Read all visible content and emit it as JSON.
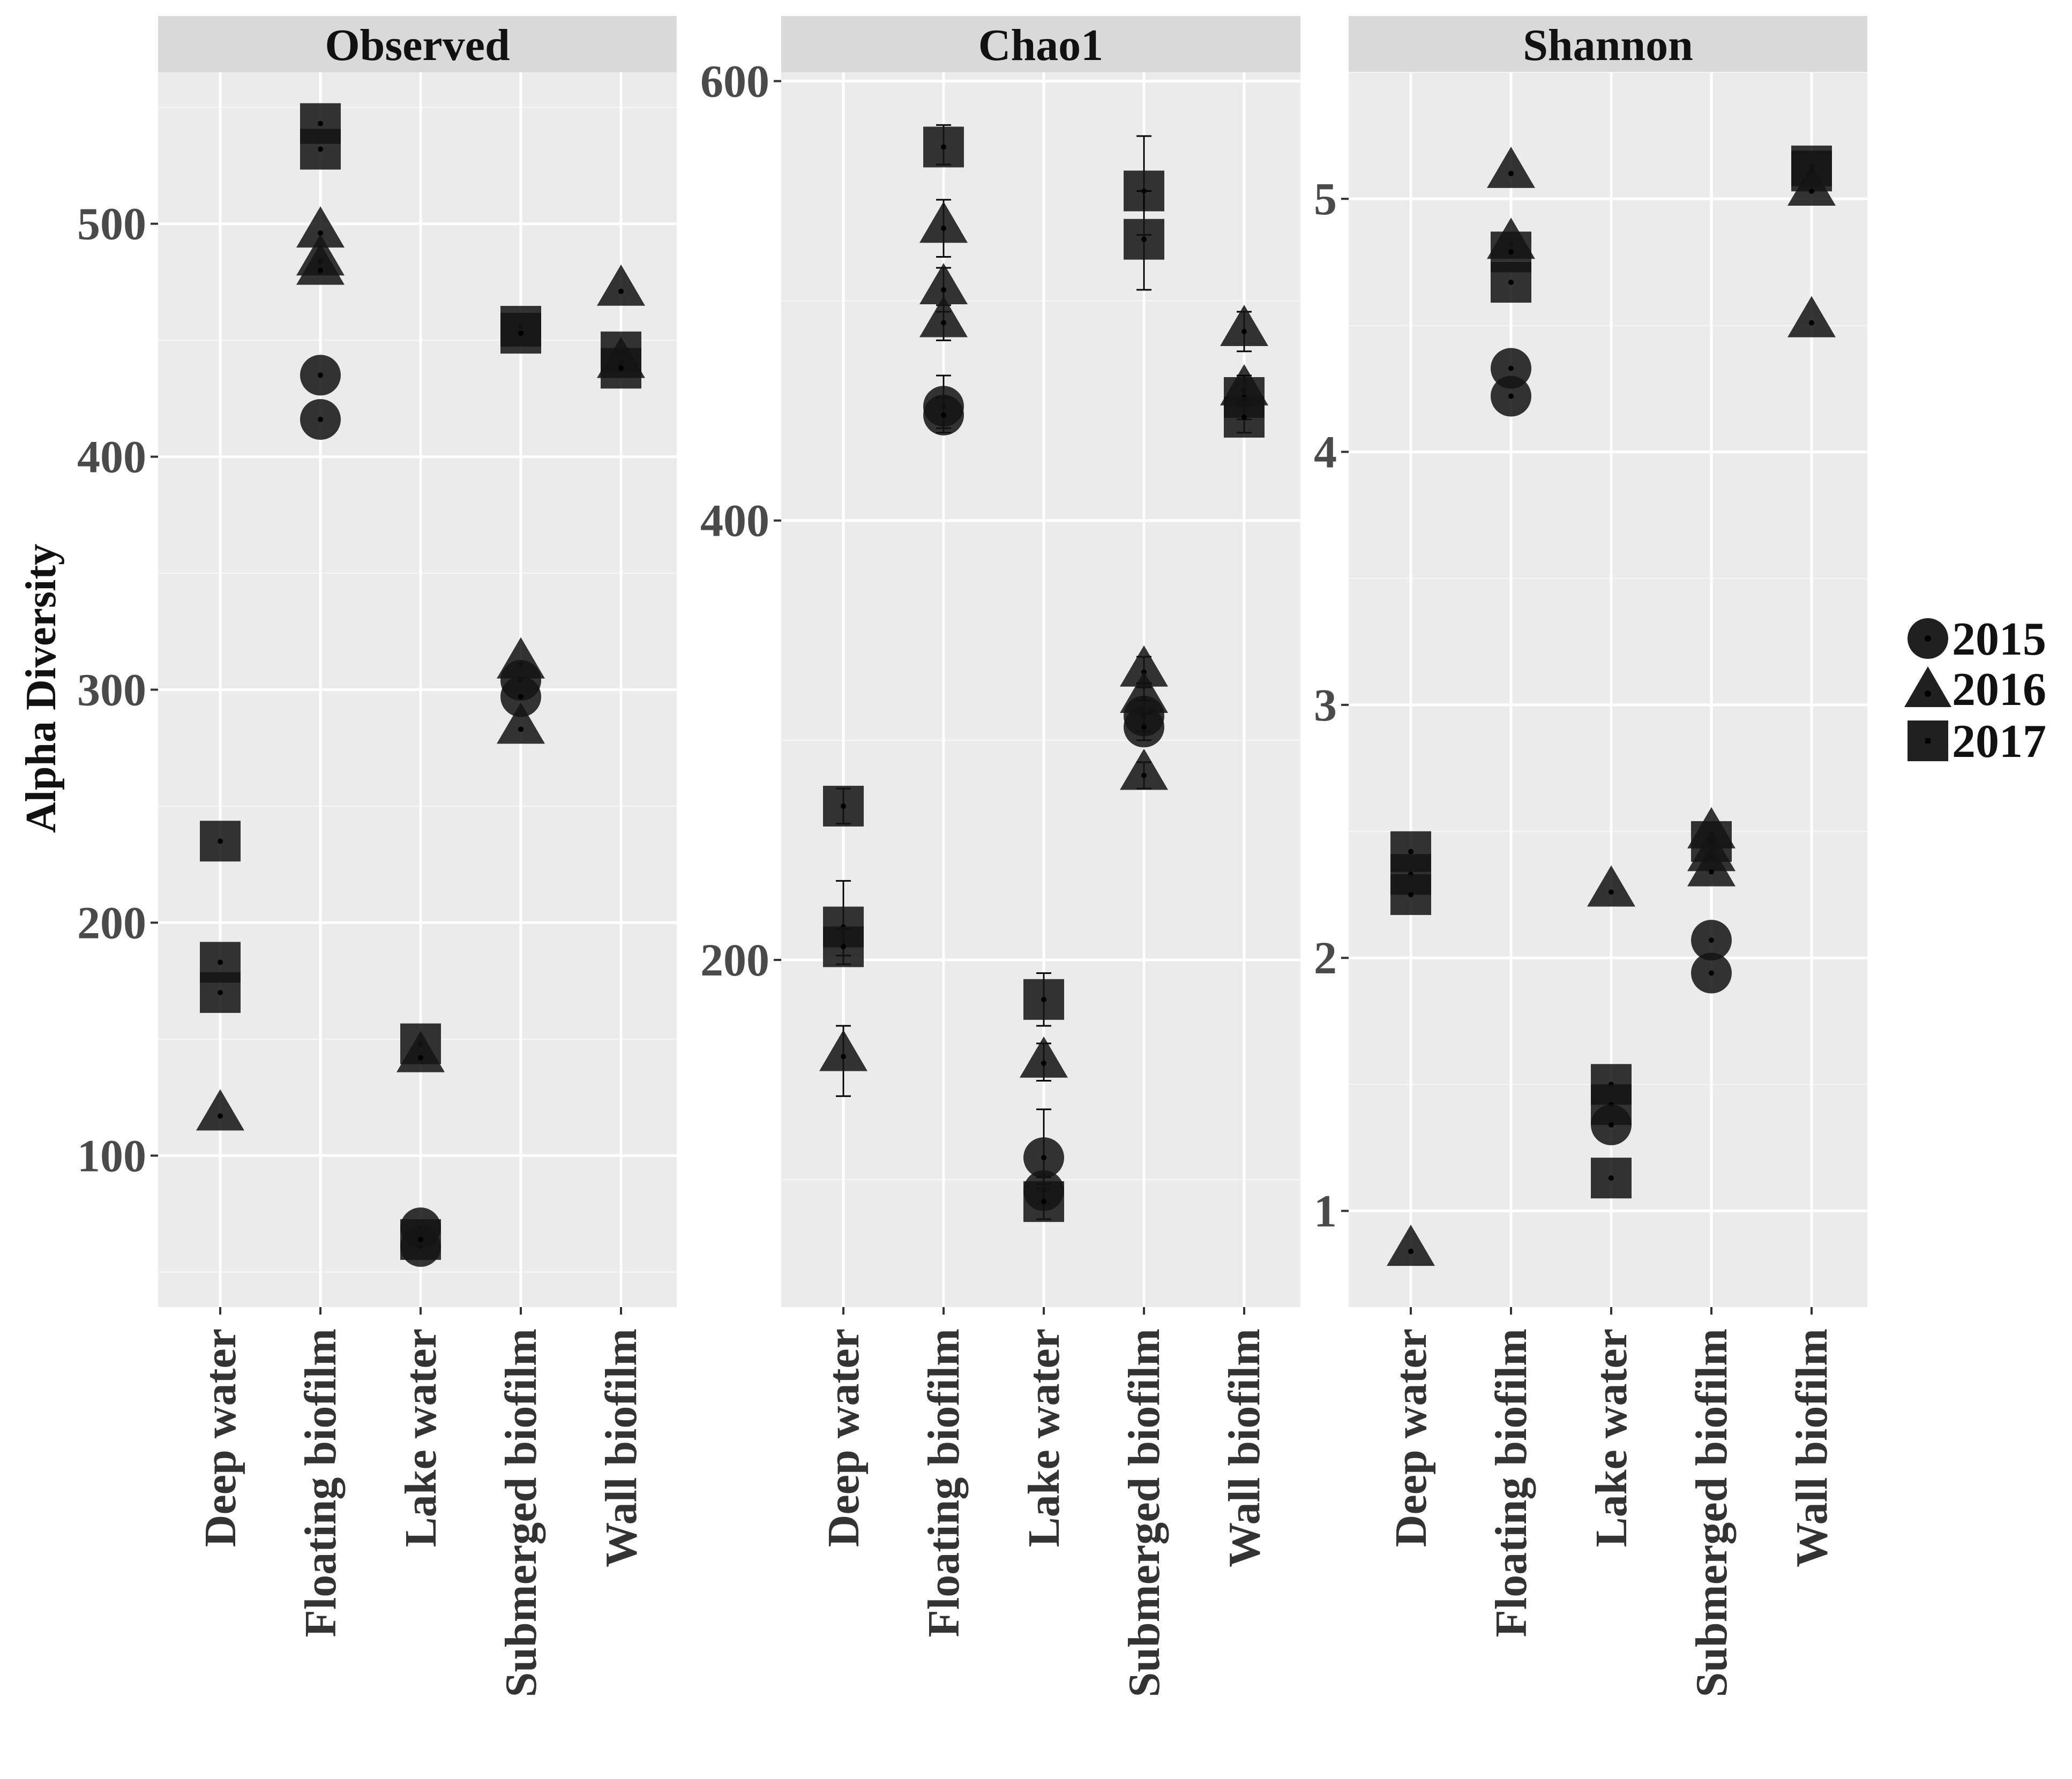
{
  "chart_data": {
    "type": "scatter",
    "ylabel": "Alpha Diversity",
    "categories": [
      "Deep water",
      "Floating biofilm",
      "Lake water",
      "Submerged biofilm",
      "Wall biofilm"
    ],
    "legend": {
      "position": "right",
      "entries": [
        {
          "label": "2015",
          "shape": "circle"
        },
        {
          "label": "2016",
          "shape": "triangle"
        },
        {
          "label": "2017",
          "shape": "square"
        }
      ]
    },
    "panels": [
      {
        "title": "Observed",
        "ylim": [
          35,
          565
        ],
        "yticks": [
          100,
          200,
          300,
          400,
          500
        ],
        "ytick_labels": [
          "100",
          "200",
          "300",
          "400",
          "500"
        ],
        "points": [
          {
            "category": "Deep water",
            "year": "2017",
            "value": 235
          },
          {
            "category": "Deep water",
            "year": "2017",
            "value": 183
          },
          {
            "category": "Deep water",
            "year": "2017",
            "value": 170
          },
          {
            "category": "Deep water",
            "year": "2016",
            "value": 117
          },
          {
            "category": "Floating biofilm",
            "year": "2017",
            "value": 543
          },
          {
            "category": "Floating biofilm",
            "year": "2017",
            "value": 532
          },
          {
            "category": "Floating biofilm",
            "year": "2016",
            "value": 496
          },
          {
            "category": "Floating biofilm",
            "year": "2016",
            "value": 484
          },
          {
            "category": "Floating biofilm",
            "year": "2016",
            "value": 480
          },
          {
            "category": "Floating biofilm",
            "year": "2015",
            "value": 435
          },
          {
            "category": "Floating biofilm",
            "year": "2015",
            "value": 416
          },
          {
            "category": "Lake water",
            "year": "2017",
            "value": 148
          },
          {
            "category": "Lake water",
            "year": "2016",
            "value": 142
          },
          {
            "category": "Lake water",
            "year": "2015",
            "value": 69
          },
          {
            "category": "Lake water",
            "year": "2015",
            "value": 61
          },
          {
            "category": "Lake water",
            "year": "2017",
            "value": 64
          },
          {
            "category": "Submerged biofilm",
            "year": "2017",
            "value": 456
          },
          {
            "category": "Submerged biofilm",
            "year": "2017",
            "value": 453
          },
          {
            "category": "Submerged biofilm",
            "year": "2016",
            "value": 311
          },
          {
            "category": "Submerged biofilm",
            "year": "2015",
            "value": 304
          },
          {
            "category": "Submerged biofilm",
            "year": "2015",
            "value": 297
          },
          {
            "category": "Submerged biofilm",
            "year": "2016",
            "value": 283
          },
          {
            "category": "Wall biofilm",
            "year": "2016",
            "value": 471
          },
          {
            "category": "Wall biofilm",
            "year": "2017",
            "value": 445
          },
          {
            "category": "Wall biofilm",
            "year": "2016",
            "value": 440
          },
          {
            "category": "Wall biofilm",
            "year": "2017",
            "value": 438
          }
        ]
      },
      {
        "title": "Chao1",
        "ylim": [
          42,
          604
        ],
        "yticks": [
          200,
          400,
          600
        ],
        "ytick_labels": [
          "200",
          "400",
          "600"
        ],
        "points": [
          {
            "category": "Deep water",
            "year": "2017",
            "value": 270,
            "err": [
              262,
              278
            ]
          },
          {
            "category": "Deep water",
            "year": "2017",
            "value": 215,
            "err": [
              202,
              236
            ]
          },
          {
            "category": "Deep water",
            "year": "2017",
            "value": 206,
            "err": [
              198,
              214
            ]
          },
          {
            "category": "Deep water",
            "year": "2016",
            "value": 156,
            "err": [
              138,
              170
            ]
          },
          {
            "category": "Floating biofilm",
            "year": "2017",
            "value": 570,
            "err": [
              562,
              580
            ]
          },
          {
            "category": "Floating biofilm",
            "year": "2016",
            "value": 533,
            "err": [
              520,
              546
            ]
          },
          {
            "category": "Floating biofilm",
            "year": "2016",
            "value": 505,
            "err": [
              495,
              515
            ]
          },
          {
            "category": "Floating biofilm",
            "year": "2016",
            "value": 490,
            "err": [
              482,
              498
            ]
          },
          {
            "category": "Floating biofilm",
            "year": "2015",
            "value": 452,
            "err": [
              442,
              466
            ]
          },
          {
            "category": "Floating biofilm",
            "year": "2015",
            "value": 448,
            "err": [
              440,
              456
            ]
          },
          {
            "category": "Lake water",
            "year": "2017",
            "value": 182,
            "err": [
              170,
              194
            ]
          },
          {
            "category": "Lake water",
            "year": "2016",
            "value": 153,
            "err": [
              145,
              162
            ]
          },
          {
            "category": "Lake water",
            "year": "2015",
            "value": 110,
            "err": [
              96,
              132
            ]
          },
          {
            "category": "Lake water",
            "year": "2015",
            "value": 95,
            "err": [
              89,
              101
            ]
          },
          {
            "category": "Lake water",
            "year": "2017",
            "value": 90,
            "err": [
              82,
              98
            ]
          },
          {
            "category": "Submerged biofilm",
            "year": "2017",
            "value": 550,
            "err": [
              530,
              575
            ]
          },
          {
            "category": "Submerged biofilm",
            "year": "2017",
            "value": 528,
            "err": [
              505,
              550
            ]
          },
          {
            "category": "Submerged biofilm",
            "year": "2016",
            "value": 331,
            "err": [
              324,
              338
            ]
          },
          {
            "category": "Submerged biofilm",
            "year": "2016",
            "value": 319,
            "err": [
              312,
              326
            ]
          },
          {
            "category": "Submerged biofilm",
            "year": "2015",
            "value": 311,
            "err": [
              304,
              318
            ]
          },
          {
            "category": "Submerged biofilm",
            "year": "2015",
            "value": 306,
            "err": [
              300,
              312
            ]
          },
          {
            "category": "Submerged biofilm",
            "year": "2016",
            "value": 284,
            "err": [
              278,
              290
            ]
          },
          {
            "category": "Wall biofilm",
            "year": "2016",
            "value": 486,
            "err": [
              477,
              495
            ]
          },
          {
            "category": "Wall biofilm",
            "year": "2016",
            "value": 459,
            "err": [
              452,
              466
            ]
          },
          {
            "category": "Wall biofilm",
            "year": "2017",
            "value": 456,
            "err": [
              446,
              466
            ]
          },
          {
            "category": "Wall biofilm",
            "year": "2017",
            "value": 447,
            "err": [
              440,
              455
            ]
          }
        ]
      },
      {
        "title": "Shannon",
        "ylim": [
          0.62,
          5.5
        ],
        "yticks": [
          1,
          2,
          3,
          4,
          5
        ],
        "ytick_labels": [
          "1",
          "2",
          "3",
          "4",
          "5"
        ],
        "points": [
          {
            "category": "Deep water",
            "year": "2017",
            "value": 2.42
          },
          {
            "category": "Deep water",
            "year": "2017",
            "value": 2.33
          },
          {
            "category": "Deep water",
            "year": "2017",
            "value": 2.25
          },
          {
            "category": "Deep water",
            "year": "2016",
            "value": 0.84
          },
          {
            "category": "Floating biofilm",
            "year": "2016",
            "value": 5.1
          },
          {
            "category": "Floating biofilm",
            "year": "2016",
            "value": 4.82
          },
          {
            "category": "Floating biofilm",
            "year": "2017",
            "value": 4.79
          },
          {
            "category": "Floating biofilm",
            "year": "2017",
            "value": 4.67
          },
          {
            "category": "Floating biofilm",
            "year": "2015",
            "value": 4.33
          },
          {
            "category": "Floating biofilm",
            "year": "2015",
            "value": 4.22
          },
          {
            "category": "Lake water",
            "year": "2016",
            "value": 2.26
          },
          {
            "category": "Lake water",
            "year": "2017",
            "value": 1.5
          },
          {
            "category": "Lake water",
            "year": "2017",
            "value": 1.42
          },
          {
            "category": "Lake water",
            "year": "2015",
            "value": 1.34
          },
          {
            "category": "Lake water",
            "year": "2017",
            "value": 1.13
          },
          {
            "category": "Submerged biofilm",
            "year": "2016",
            "value": 2.49
          },
          {
            "category": "Submerged biofilm",
            "year": "2017",
            "value": 2.46
          },
          {
            "category": "Submerged biofilm",
            "year": "2016",
            "value": 2.4
          },
          {
            "category": "Submerged biofilm",
            "year": "2016",
            "value": 2.34
          },
          {
            "category": "Submerged biofilm",
            "year": "2015",
            "value": 2.07
          },
          {
            "category": "Submerged biofilm",
            "year": "2015",
            "value": 1.94
          },
          {
            "category": "Wall biofilm",
            "year": "2017",
            "value": 5.13
          },
          {
            "category": "Wall biofilm",
            "year": "2017",
            "value": 5.11
          },
          {
            "category": "Wall biofilm",
            "year": "2016",
            "value": 5.03
          },
          {
            "category": "Wall biofilm",
            "year": "2016",
            "value": 4.51
          }
        ]
      }
    ]
  }
}
